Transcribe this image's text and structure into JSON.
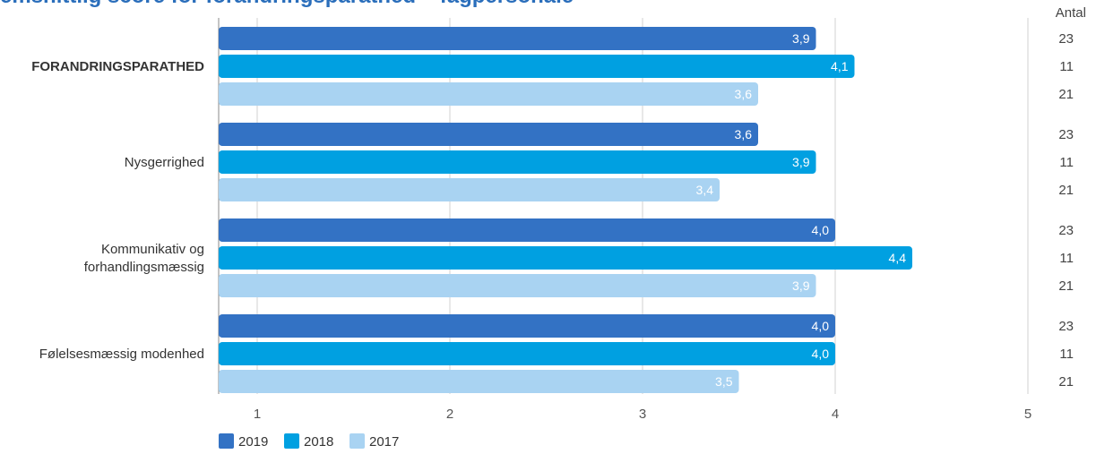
{
  "chart_data": {
    "type": "bar",
    "orientation": "horizontal",
    "title": "emsnittlig score for forandringsparathed – fagpersonale",
    "categories": [
      "FORANDRINGSPARATHED",
      "Nysgerrighed",
      "Kommunikativ og forhandlingsmæssig",
      "Følelsesmæssig modenhed"
    ],
    "category_lines": [
      [
        "FORANDRINGSPARATHED"
      ],
      [
        "Nysgerrighed"
      ],
      [
        "Kommunikativ og",
        "forhandlingsmæssig"
      ],
      [
        "Følelsesmæssig modenhed"
      ]
    ],
    "series": [
      {
        "name": "2019",
        "color": "#3372c4",
        "values": [
          3.9,
          3.6,
          4.0,
          4.0
        ],
        "labels": [
          "3,9",
          "3,6",
          "4,0",
          "4,0"
        ],
        "count": "23"
      },
      {
        "name": "2018",
        "color": "#00a0e1",
        "values": [
          4.1,
          3.9,
          4.4,
          4.0
        ],
        "labels": [
          "4,1",
          "3,9",
          "4,4",
          "4,0"
        ],
        "count": "11"
      },
      {
        "name": "2017",
        "color": "#a9d3f2",
        "values": [
          3.6,
          3.4,
          3.9,
          3.5
        ],
        "labels": [
          "3,6",
          "3,4",
          "3,9",
          "3,5"
        ],
        "count": "21"
      }
    ],
    "xlim": [
      0.8,
      5
    ],
    "xticks": [
      1,
      2,
      3,
      4,
      5
    ],
    "count_header": "Antal",
    "legend_position": "bottom-left",
    "grid": true
  }
}
